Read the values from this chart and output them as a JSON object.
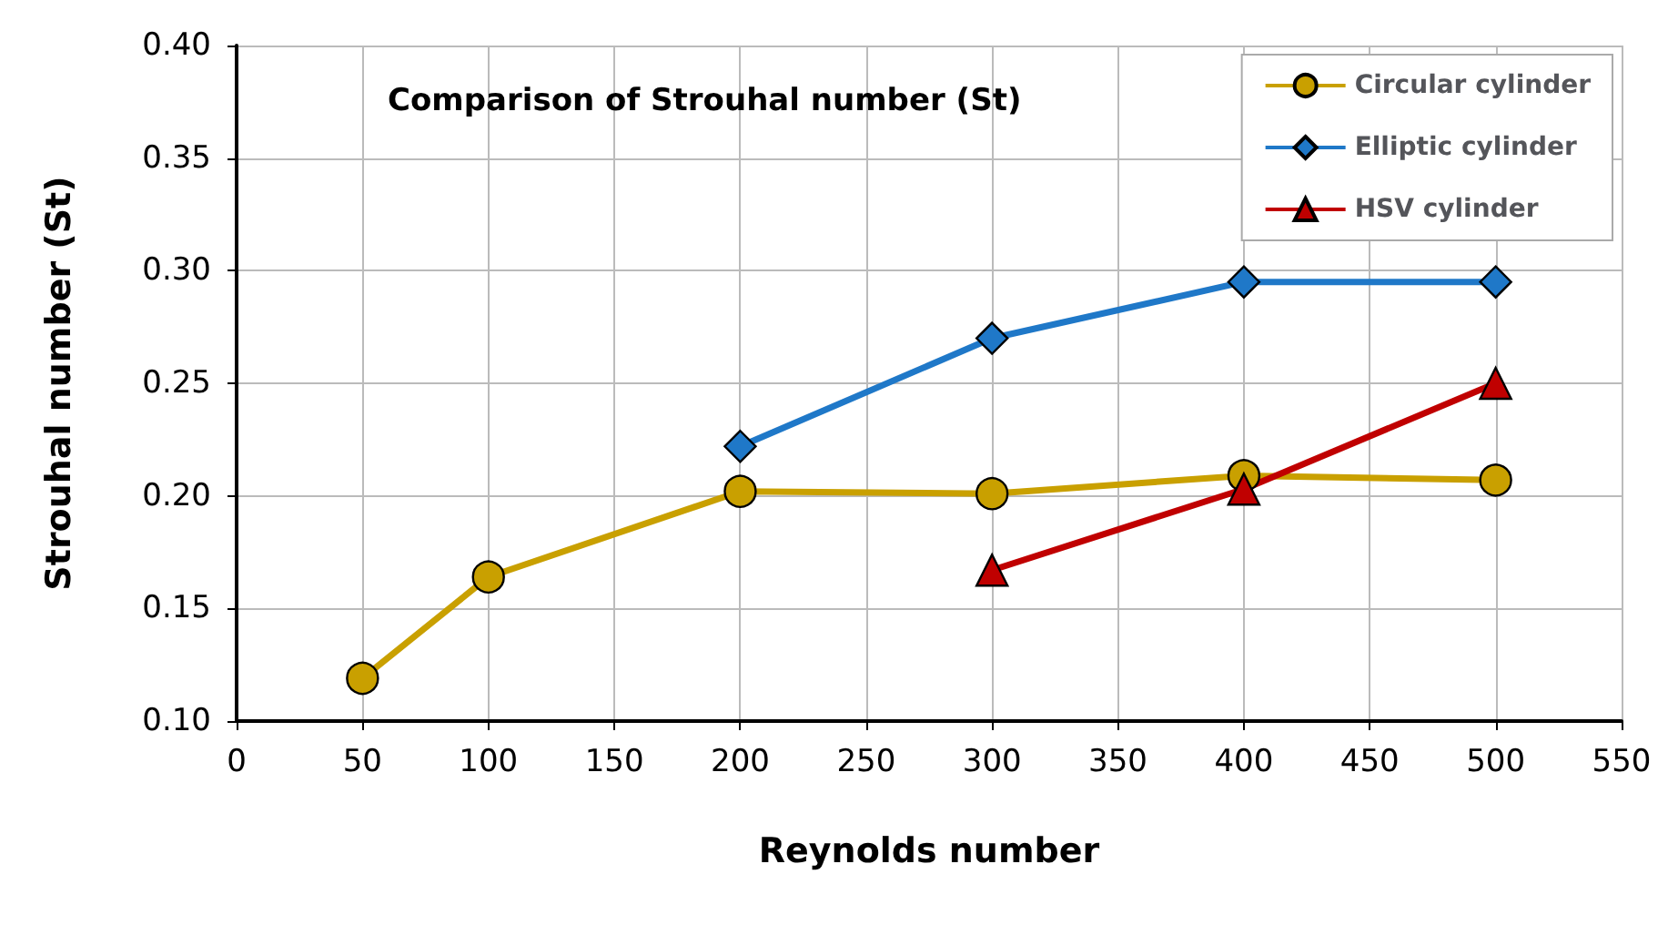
{
  "chart_data": {
    "type": "line",
    "title": "Comparison of Strouhal number (St)",
    "xlabel": "Reynolds number",
    "ylabel": "Strouhal number (St)",
    "xlim": [
      0,
      550
    ],
    "xticks": [
      0,
      50,
      100,
      150,
      200,
      250,
      300,
      350,
      400,
      450,
      500,
      550
    ],
    "ylim": [
      0.1,
      0.4
    ],
    "yticks": [
      {
        "value": 0.1,
        "label": "0.10"
      },
      {
        "value": 0.15,
        "label": "0.15"
      },
      {
        "value": 0.2,
        "label": "0.20"
      },
      {
        "value": 0.25,
        "label": "0.25"
      },
      {
        "value": 0.3,
        "label": "0.30"
      },
      {
        "value": 0.35,
        "label": "0.35"
      },
      {
        "value": 0.4,
        "label": "0.40"
      }
    ],
    "grid": true,
    "legend": "top right",
    "line_style": "solid",
    "series": [
      {
        "name": "Circular cylinder",
        "color": "#c9a000",
        "marker": "circle",
        "x": [
          50,
          100,
          200,
          300,
          400,
          500
        ],
        "values": [
          0.119,
          0.164,
          0.202,
          0.201,
          0.209,
          0.207
        ]
      },
      {
        "name": "Elliptic cylinder",
        "color": "#1f78c8",
        "marker": "diamond",
        "x": [
          200,
          300,
          400,
          500
        ],
        "values": [
          0.222,
          0.27,
          0.295,
          0.295
        ]
      },
      {
        "name": "HSV cylinder",
        "color": "#c00000",
        "marker": "triangle",
        "x": [
          300,
          400,
          500
        ],
        "values": [
          0.167,
          0.203,
          0.25
        ]
      }
    ]
  }
}
